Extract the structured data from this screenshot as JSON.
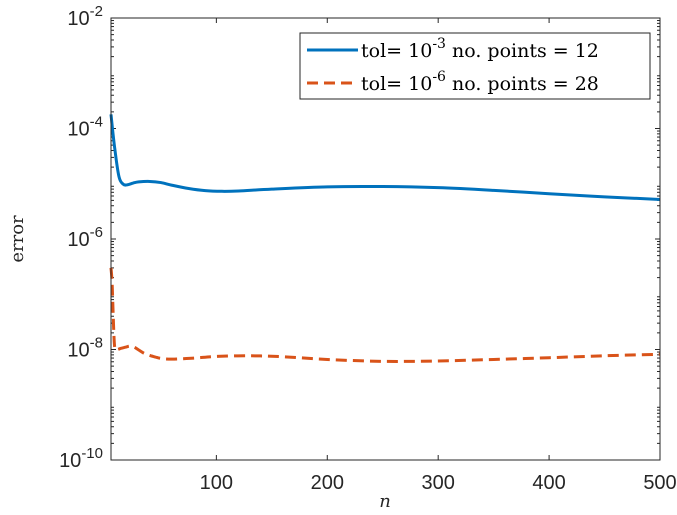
{
  "chart_data": {
    "type": "line",
    "xlabel": "n",
    "ylabel": "error",
    "xscale": "linear",
    "yscale": "log",
    "xlim": [
      5,
      500
    ],
    "ylim": [
      1e-10,
      0.01
    ],
    "grid": false,
    "legend_position": "top-right",
    "xticks": [
      {
        "value": 100,
        "label": "100"
      },
      {
        "value": 200,
        "label": "200"
      },
      {
        "value": 300,
        "label": "300"
      },
      {
        "value": 400,
        "label": "400"
      },
      {
        "value": 500,
        "label": "500"
      }
    ],
    "yticks": [
      {
        "value": 1e-10,
        "base": "10",
        "exp": "-10"
      },
      {
        "value": 1e-08,
        "base": "10",
        "exp": "-8"
      },
      {
        "value": 1e-06,
        "base": "10",
        "exp": "-6"
      },
      {
        "value": 0.0001,
        "base": "10",
        "exp": "-4"
      },
      {
        "value": 0.01,
        "base": "10",
        "exp": "-2"
      }
    ],
    "series": [
      {
        "name": "tol= 10^-3 no. points = 12",
        "legend": {
          "prefix": "tol= ",
          "base": "10",
          "exp": "-3",
          "suffix": " no. points = 12"
        },
        "color": "#0072BD",
        "style": "solid",
        "x": [
          5,
          8,
          12,
          16,
          20,
          25,
          30,
          40,
          50,
          60,
          75,
          90,
          105,
          120,
          150,
          200,
          250,
          300,
          350,
          400,
          450,
          500
        ],
        "y": [
          0.00018,
          5e-05,
          1.4e-05,
          9.8e-06,
          9.6e-06,
          1.03e-05,
          1.08e-05,
          1.1e-05,
          1.05e-05,
          9.4e-06,
          8.2e-06,
          7.5e-06,
          7.3e-06,
          7.4e-06,
          8e-06,
          8.8e-06,
          8.9e-06,
          8.5e-06,
          7.6e-06,
          6.6e-06,
          5.8e-06,
          5.2e-06
        ]
      },
      {
        "name": "tol= 10^-6 no. points = 28",
        "legend": {
          "prefix": "tol= ",
          "base": "10",
          "exp": "-6",
          "suffix": " no. points = 28"
        },
        "color": "#D95319",
        "style": "dashed",
        "x": [
          5,
          6,
          7,
          8,
          9,
          11,
          14,
          18,
          22,
          26,
          30,
          35,
          40,
          45,
          50,
          60,
          80,
          100,
          130,
          160,
          200,
          250,
          300,
          350,
          400,
          450,
          500
        ],
        "y": [
          3e-07,
          1.6e-07,
          4e-08,
          1.3e-08,
          1e-08,
          1e-08,
          1.05e-08,
          1.1e-08,
          1.15e-08,
          1.1e-08,
          9.8e-09,
          8.5e-09,
          7.8e-09,
          7.3e-09,
          6.9e-09,
          6.7e-09,
          7e-09,
          7.5e-09,
          7.7e-09,
          7.4e-09,
          6.6e-09,
          6.1e-09,
          6.2e-09,
          6.6e-09,
          7.1e-09,
          7.7e-09,
          8.2e-09
        ]
      }
    ]
  }
}
